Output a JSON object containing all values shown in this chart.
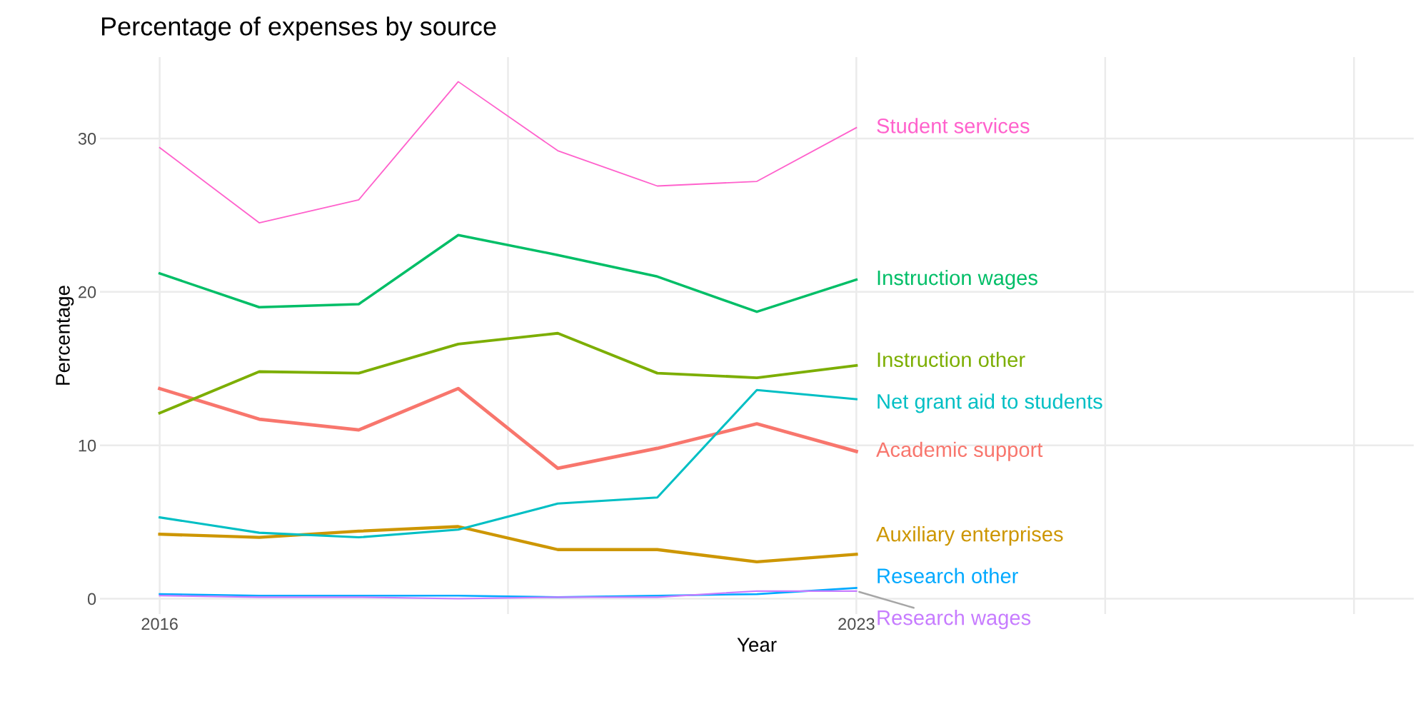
{
  "chart_data": {
    "type": "line",
    "title": "Percentage of expenses by source",
    "xlabel": "Year",
    "ylabel": "Percentage",
    "x": [
      2016,
      2017,
      2018,
      2019,
      2020,
      2021,
      2022,
      2023
    ],
    "xlim": [
      2015.4,
      2028.6
    ],
    "xticks": [
      2016,
      {
        "value": 2019.5,
        "label": null
      },
      2023,
      {
        "value": 2025.5,
        "label": null
      },
      {
        "value": 2028,
        "label": null
      }
    ],
    "ylim": [
      -1,
      35.3
    ],
    "yticks": [
      0,
      10,
      20,
      30
    ],
    "grid": true,
    "legend": false,
    "marker": "none",
    "line_style": "solid",
    "series": [
      {
        "name": "Academic support",
        "color": "#f8766d",
        "values": [
          13.7,
          11.7,
          11.0,
          13.7,
          8.5,
          9.8,
          11.4,
          9.6
        ]
      },
      {
        "name": "Auxiliary enterprises",
        "color": "#cd9600",
        "values": [
          4.2,
          4.0,
          4.4,
          4.7,
          3.2,
          3.2,
          2.4,
          2.9
        ]
      },
      {
        "name": "Instruction other",
        "color": "#7cae00",
        "values": [
          12.1,
          14.8,
          14.7,
          16.6,
          17.3,
          14.7,
          14.4,
          15.2
        ]
      },
      {
        "name": "Instruction wages",
        "color": "#00be67",
        "values": [
          21.2,
          19.0,
          19.2,
          23.7,
          22.4,
          21.0,
          18.7,
          20.8
        ]
      },
      {
        "name": "Net grant aid to students",
        "color": "#00bfc4",
        "values": [
          5.3,
          4.3,
          4.0,
          4.5,
          6.2,
          6.6,
          13.6,
          13.0
        ]
      },
      {
        "name": "Research other",
        "color": "#00a9ff",
        "values": [
          0.3,
          0.2,
          0.2,
          0.2,
          0.1,
          0.2,
          0.3,
          0.7
        ]
      },
      {
        "name": "Research wages",
        "color": "#c77cff",
        "values": [
          0.2,
          0.1,
          0.1,
          0.0,
          0.1,
          0.1,
          0.5,
          0.5
        ]
      },
      {
        "name": "Student services",
        "color": "#ff61cc",
        "values": [
          29.4,
          24.5,
          26.0,
          33.7,
          29.2,
          26.9,
          27.2,
          30.7
        ]
      }
    ]
  }
}
